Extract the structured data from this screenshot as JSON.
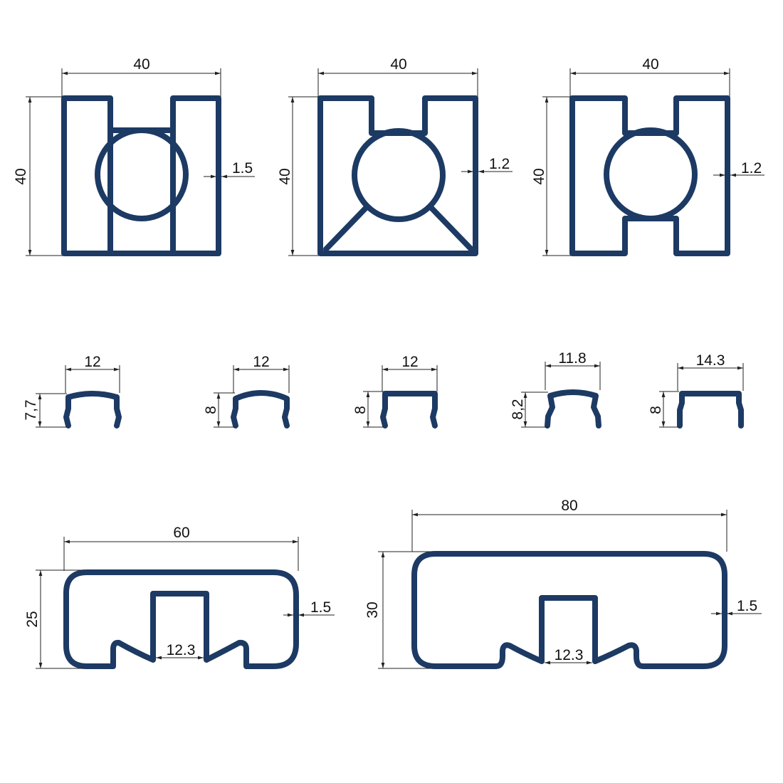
{
  "colors": {
    "profile": "#1c3a63",
    "dimension": "#222222",
    "background": "#ffffff"
  },
  "profiles": {
    "p1": {
      "width": "40",
      "height": "40",
      "wall": "1.5"
    },
    "p2": {
      "width": "40",
      "height": "40",
      "wall": "1.2"
    },
    "p3": {
      "width": "40",
      "height": "40",
      "wall": "1.2"
    },
    "c1": {
      "width": "12",
      "height": "7,7"
    },
    "c2": {
      "width": "12",
      "height": "8"
    },
    "c3": {
      "width": "12",
      "height": "8"
    },
    "c4": {
      "width": "11.8",
      "height": "8,2"
    },
    "c5": {
      "width": "14.3",
      "height": "8"
    },
    "b1": {
      "width": "60",
      "height": "25",
      "wall": "1.5",
      "slot": "12.3"
    },
    "b2": {
      "width": "80",
      "height": "30",
      "wall": "1.5",
      "slot": "12.3"
    }
  }
}
